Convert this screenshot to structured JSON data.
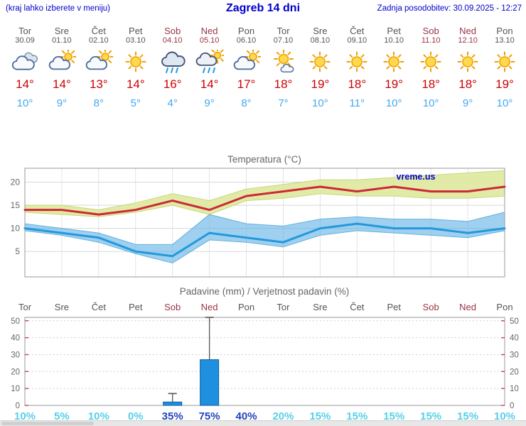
{
  "header": {
    "hint": "(kraj lahko izberete v meniju)",
    "title": "Zagreb 14 dni",
    "updated": "Zadnja posodobitev: 30.09.2025 - 12:27"
  },
  "colors": {
    "accent_blue": "#0000cc",
    "weekday": "#555555",
    "weekend": "#993344",
    "temp_high": "#cc0000",
    "temp_low": "#44a8f0",
    "line_high": "#cc2936",
    "line_low": "#2299dd",
    "band_high": "#dfeaa2",
    "band_high_edge": "#c8d878",
    "band_low": "#5fb0e4",
    "bar_fill": "#1f8fe0",
    "bar_edge": "#0c5c9e",
    "pct_normal": "#55d0e8",
    "pct_strong": "#2244bb",
    "tick_red": "#cc4444"
  },
  "days": [
    {
      "name": "Tor",
      "date": "30.09",
      "weekend": false,
      "icon": "cloud",
      "high": "14°",
      "low": "10°"
    },
    {
      "name": "Sre",
      "date": "01.10",
      "weekend": false,
      "icon": "sun-cloud",
      "high": "14°",
      "low": "9°"
    },
    {
      "name": "Čet",
      "date": "02.10",
      "weekend": false,
      "icon": "sun-cloud",
      "high": "13°",
      "low": "8°"
    },
    {
      "name": "Pet",
      "date": "03.10",
      "weekend": false,
      "icon": "sun",
      "high": "14°",
      "low": "5°"
    },
    {
      "name": "Sob",
      "date": "04.10",
      "weekend": true,
      "icon": "rain",
      "high": "16°",
      "low": "4°"
    },
    {
      "name": "Ned",
      "date": "05.10",
      "weekend": true,
      "icon": "sun-rain",
      "high": "14°",
      "low": "9°"
    },
    {
      "name": "Pon",
      "date": "06.10",
      "weekend": false,
      "icon": "sun-cloud",
      "high": "17°",
      "low": "8°"
    },
    {
      "name": "Tor",
      "date": "07.10",
      "weekend": false,
      "icon": "mostly-sunny",
      "high": "18°",
      "low": "7°"
    },
    {
      "name": "Sre",
      "date": "08.10",
      "weekend": false,
      "icon": "sun",
      "high": "19°",
      "low": "10°"
    },
    {
      "name": "Čet",
      "date": "09.10",
      "weekend": false,
      "icon": "sun",
      "high": "18°",
      "low": "11°"
    },
    {
      "name": "Pet",
      "date": "10.10",
      "weekend": false,
      "icon": "sun",
      "high": "19°",
      "low": "10°"
    },
    {
      "name": "Sob",
      "date": "11.10",
      "weekend": true,
      "icon": "sun",
      "high": "18°",
      "low": "10°"
    },
    {
      "name": "Ned",
      "date": "12.10",
      "weekend": true,
      "icon": "sun",
      "high": "18°",
      "low": "9°"
    },
    {
      "name": "Pon",
      "date": "13.10",
      "weekend": false,
      "icon": "sun",
      "high": "19°",
      "low": "10°"
    }
  ],
  "chart_data": [
    {
      "type": "line",
      "title": "Temperatura (°C)",
      "watermark": "vreme.us",
      "categories": [
        "Tor",
        "Sre",
        "Čet",
        "Pet",
        "Sob",
        "Ned",
        "Pon",
        "Tor",
        "Sre",
        "Čet",
        "Pet",
        "Sob",
        "Ned",
        "Pon"
      ],
      "series": [
        {
          "name": "temp_max",
          "values": [
            14,
            14,
            13,
            14,
            16,
            14,
            17,
            18,
            19,
            18,
            19,
            18,
            18,
            19
          ]
        },
        {
          "name": "temp_max_range_upper",
          "values": [
            15,
            15,
            14,
            15.5,
            17.5,
            16,
            18.5,
            19.5,
            20.5,
            20.5,
            21,
            21.5,
            22,
            22.5
          ]
        },
        {
          "name": "temp_max_range_lower",
          "values": [
            13.5,
            13,
            12.5,
            13.5,
            15,
            13,
            16,
            16.5,
            17.5,
            17,
            17,
            16.5,
            16.5,
            17
          ]
        },
        {
          "name": "temp_min",
          "values": [
            10,
            9,
            8,
            5,
            4,
            9,
            8,
            7,
            10,
            11,
            10,
            10,
            9,
            10
          ]
        },
        {
          "name": "temp_min_range_upper",
          "values": [
            11,
            10,
            9,
            6.5,
            6.5,
            13,
            11,
            10.5,
            12,
            12.5,
            12,
            12,
            11.5,
            13.5
          ]
        },
        {
          "name": "temp_min_range_lower",
          "values": [
            9.5,
            8.5,
            7,
            4.5,
            2.5,
            7.5,
            7,
            6,
            8.5,
            9.5,
            9,
            8.5,
            8,
            9.5
          ]
        }
      ],
      "ylim": [
        -0.5,
        23
      ],
      "yticks": [
        5,
        10,
        15,
        20
      ],
      "grid": true
    },
    {
      "type": "bar",
      "title": "Padavine (mm) / Verjetnost padavin (%)",
      "categories": [
        "Tor",
        "Sre",
        "Čet",
        "Pet",
        "Sob",
        "Ned",
        "Pon",
        "Tor",
        "Sre",
        "Čet",
        "Pet",
        "Sob",
        "Ned",
        "Pon"
      ],
      "weekend": [
        false,
        false,
        false,
        false,
        true,
        true,
        false,
        false,
        false,
        false,
        false,
        true,
        true,
        false
      ],
      "values": [
        0,
        0,
        0,
        0,
        2,
        27,
        0,
        0,
        0,
        0,
        0,
        0,
        0,
        0
      ],
      "whisker_max": [
        0,
        0,
        0,
        0,
        7,
        52,
        0,
        0,
        0,
        0,
        0,
        0,
        0,
        0
      ],
      "probability": [
        "10%",
        "5%",
        "10%",
        "0%",
        "35%",
        "75%",
        "40%",
        "20%",
        "15%",
        "15%",
        "15%",
        "15%",
        "15%",
        "10%"
      ],
      "probability_strong": [
        false,
        false,
        false,
        false,
        true,
        true,
        true,
        false,
        false,
        false,
        false,
        false,
        false,
        false
      ],
      "ylim": [
        0,
        52
      ],
      "yticks": [
        0,
        10,
        20,
        30,
        40,
        50
      ],
      "grid": true
    }
  ]
}
